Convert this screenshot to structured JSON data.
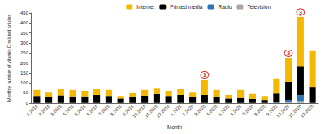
{
  "chart_data": {
    "type": "bar",
    "stacked": true,
    "x_label": "Month",
    "y_label": "Monthly number of vitamin D related articles",
    "categories": [
      "1.2019",
      "2.2019",
      "3.2019",
      "4.2019",
      "5.2019",
      "6.2019",
      "7.2019",
      "8.2019",
      "9.2019",
      "10.2019",
      "11.2019",
      "12.2019",
      "1.2020",
      "2.2020",
      "3.2020",
      "4.2020",
      "5.2020",
      "6.2020",
      "7.2020",
      "8.2020",
      "9.2020",
      "10.2020",
      "11.2020",
      "12.2020"
    ],
    "series": [
      {
        "name": "Internet",
        "color": "#f5b800",
        "values": [
          30,
          25,
          32,
          32,
          27,
          30,
          30,
          13,
          22,
          29,
          30,
          25,
          30,
          25,
          75,
          35,
          18,
          40,
          25,
          20,
          75,
          120,
          245,
          180
        ]
      },
      {
        "name": "Printed media",
        "color": "#000000",
        "values": [
          35,
          30,
          38,
          33,
          33,
          40,
          35,
          22,
          28,
          36,
          45,
          35,
          40,
          30,
          40,
          30,
          22,
          25,
          20,
          15,
          45,
          90,
          145,
          80
        ]
      },
      {
        "name": "Radio",
        "color": "#2e75b6",
        "values": [
          0,
          0,
          0,
          0,
          0,
          0,
          0,
          0,
          0,
          0,
          0,
          0,
          0,
          0,
          0,
          0,
          0,
          0,
          0,
          0,
          2,
          10,
          30,
          0
        ]
      },
      {
        "name": "Television",
        "color": "#a6a6a6",
        "values": [
          0,
          0,
          0,
          0,
          0,
          0,
          0,
          0,
          0,
          0,
          0,
          0,
          0,
          0,
          0,
          0,
          0,
          0,
          0,
          0,
          0,
          5,
          10,
          0
        ]
      }
    ],
    "ylim": [
      0,
      450
    ],
    "yticks": [
      0,
      50,
      100,
      150,
      200,
      250,
      300,
      350,
      400,
      450
    ],
    "grid": false,
    "legend": "top-right",
    "annotations": [
      {
        "text": "1",
        "category": "3.2020",
        "color": "#e02020"
      },
      {
        "text": "2",
        "category": "10.2020",
        "color": "#e02020"
      },
      {
        "text": "3",
        "category": "11.2020",
        "color": "#e02020"
      }
    ]
  }
}
